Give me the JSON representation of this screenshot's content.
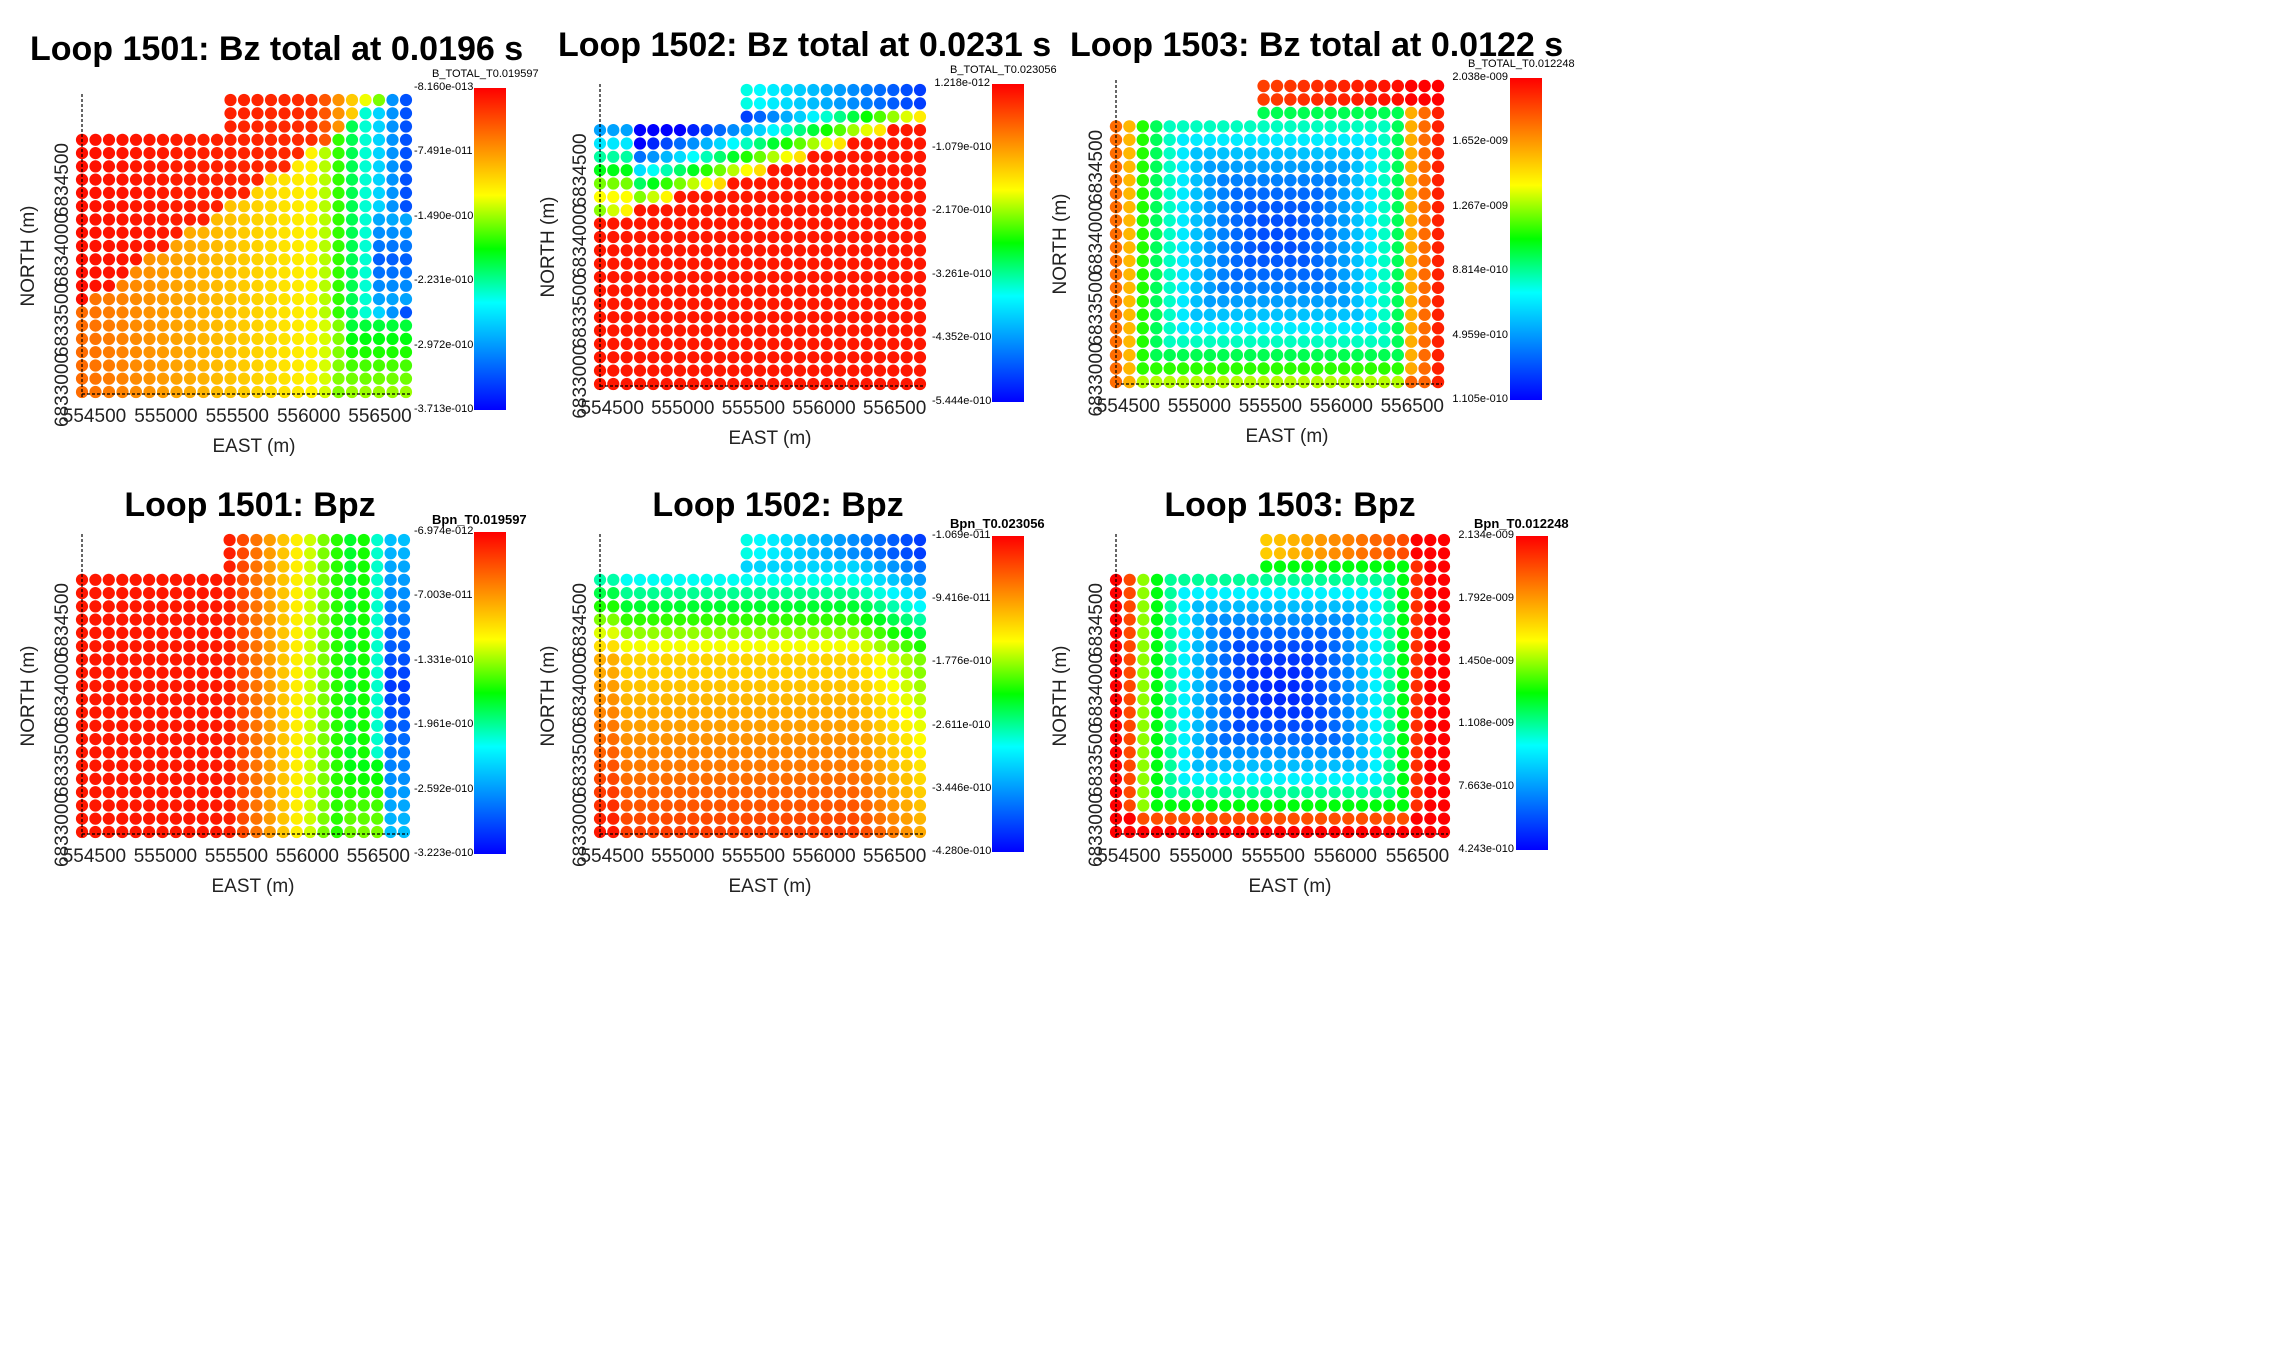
{
  "colors": {
    "colormap": [
      "#0000ff",
      "#0080ff",
      "#00ffff",
      "#00ff00",
      "#ffff00",
      "#ff8000",
      "#ff0000"
    ],
    "axis": "#000000"
  },
  "axes": {
    "xlabel": "EAST (m)",
    "ylabel": "NORTH (m)",
    "xticks": [
      "554500",
      "555000",
      "555500",
      "556000",
      "556500"
    ],
    "yticks": [
      "6833000",
      "6833500",
      "6834000",
      "6834500"
    ]
  },
  "chart_data": [
    {
      "type": "scatter",
      "title": "Loop 1501: Bz total at 0.0196 s",
      "xlabel": "EAST (m)",
      "ylabel": "NORTH (m)",
      "xlim": [
        554300,
        556850
      ],
      "ylim": [
        6832700,
        6835000
      ],
      "xticks": [
        554500,
        555000,
        555500,
        556000,
        556500
      ],
      "yticks": [
        6833000,
        6833500,
        6834000,
        6834500
      ],
      "colorbar": {
        "title": "B_TOTAL_T0.019597",
        "labels": [
          "-8.160e-013",
          "-7.491e-011",
          "-1.490e-010",
          "-2.231e-010",
          "-2.972e-010",
          "-3.713e-010"
        ],
        "min": -3.713e-10,
        "max": -8.16e-13
      },
      "field_pattern": "low in south-west, decreasing to east"
    },
    {
      "type": "scatter",
      "title": "Loop 1502: Bz total at 0.0231 s",
      "xlabel": "EAST (m)",
      "ylabel": "NORTH (m)",
      "xlim": [
        554300,
        556850
      ],
      "ylim": [
        6832700,
        6835000
      ],
      "xticks": [
        554500,
        555000,
        555500,
        556000,
        556500
      ],
      "yticks": [
        6833000,
        6833500,
        6834000,
        6834500
      ],
      "colorbar": {
        "title": "B_TOTAL_T0.023056",
        "labels": [
          "1.218e-012",
          "-1.079e-010",
          "-2.170e-010",
          "-3.261e-010",
          "-4.352e-010",
          "-5.444e-010"
        ],
        "min": -5.444e-10,
        "max": 1.218e-12
      },
      "field_pattern": "high in south, decreasing to north-east"
    },
    {
      "type": "scatter",
      "title": "Loop 1503: Bz total at 0.0122 s",
      "xlabel": "EAST (m)",
      "ylabel": "NORTH (m)",
      "xlim": [
        554300,
        556850
      ],
      "ylim": [
        6832700,
        6835000
      ],
      "xticks": [
        554500,
        555000,
        555500,
        556000,
        556500
      ],
      "yticks": [
        6833000,
        6833500,
        6834000,
        6834500
      ],
      "colorbar": {
        "title": "B_TOTAL_T0.012248",
        "labels": [
          "2.038e-009",
          "1.652e-009",
          "1.267e-009",
          "8.814e-010",
          "4.959e-010",
          "1.105e-010"
        ],
        "min": 1.105e-10,
        "max": 2.038e-09
      },
      "field_pattern": "low in centre, rising towards edges"
    },
    {
      "type": "scatter",
      "title": "Loop 1501: Bpz",
      "xlabel": "EAST (m)",
      "ylabel": "NORTH (m)",
      "xlim": [
        554300,
        556850
      ],
      "ylim": [
        6832700,
        6835000
      ],
      "xticks": [
        554500,
        555000,
        555500,
        556000,
        556500
      ],
      "yticks": [
        6833000,
        6833500,
        6834000,
        6834500
      ],
      "colorbar": {
        "title": "Bpn_T0.019597",
        "labels": [
          "-6.974e-012",
          "-7.003e-011",
          "-1.331e-010",
          "-1.961e-010",
          "-2.592e-010",
          "-3.223e-010"
        ],
        "min": -3.223e-10,
        "max": -6.974e-12
      },
      "field_pattern": "high in west, decreasing to east"
    },
    {
      "type": "scatter",
      "title": "Loop 1502: Bpz",
      "xlabel": "EAST (m)",
      "ylabel": "NORTH (m)",
      "xlim": [
        554300,
        556850
      ],
      "ylim": [
        6832700,
        6835000
      ],
      "xticks": [
        554500,
        555000,
        555500,
        556000,
        556500
      ],
      "yticks": [
        6833000,
        6833500,
        6834000,
        6834500
      ],
      "colorbar": {
        "title": "Bpn_T0.023056",
        "labels": [
          "-1.069e-011",
          "-9.416e-011",
          "-1.776e-010",
          "-2.611e-010",
          "-3.446e-010",
          "-4.280e-010"
        ],
        "min": -4.28e-10,
        "max": -1.069e-11
      },
      "field_pattern": "high in south, decreasing to north"
    },
    {
      "type": "scatter",
      "title": "Loop 1503: Bpz",
      "xlabel": "EAST (m)",
      "ylabel": "NORTH (m)",
      "xlim": [
        554300,
        556850
      ],
      "ylim": [
        6832700,
        6835000
      ],
      "xticks": [
        554500,
        555000,
        555500,
        556000,
        556500
      ],
      "yticks": [
        6833000,
        6833500,
        6834000,
        6834500
      ],
      "colorbar": {
        "title": "Bpn_T0.012248",
        "labels": [
          "2.134e-009",
          "1.792e-009",
          "1.450e-009",
          "1.108e-009",
          "7.663e-010",
          "4.243e-010"
        ],
        "min": 4.243e-10,
        "max": 2.134e-09
      },
      "field_pattern": "low in centre, rising towards edges"
    }
  ]
}
